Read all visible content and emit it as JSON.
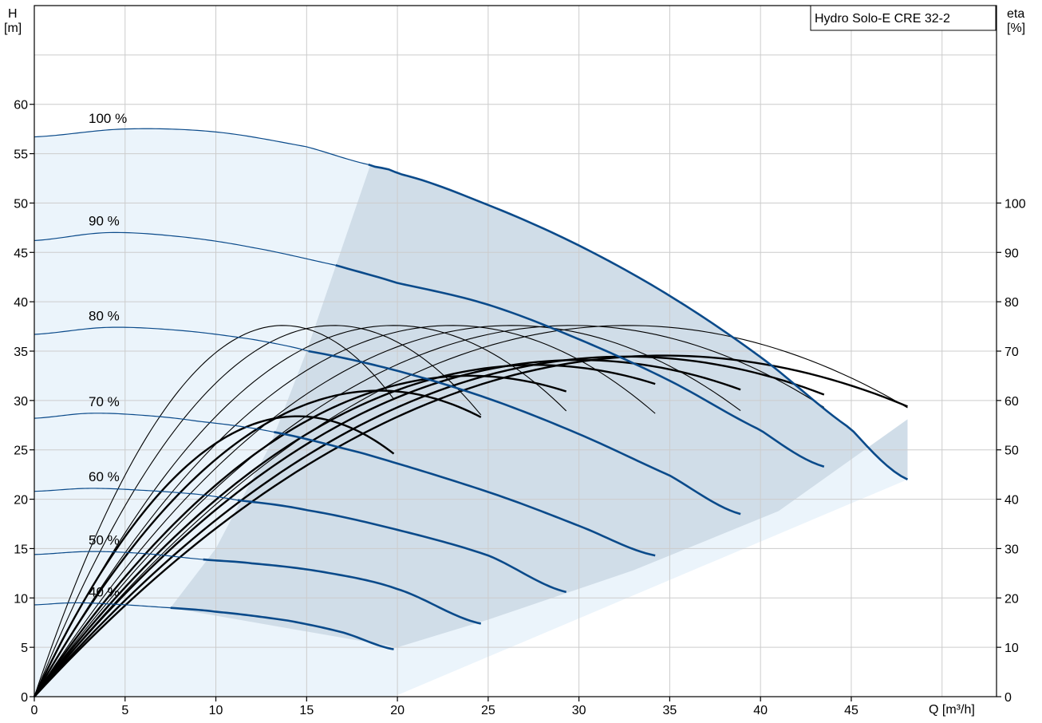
{
  "chart_data": {
    "type": "line",
    "title": "Hydro Solo-E CRE 32-2",
    "xlabel": "Q [m³/h]",
    "ylabel_left": [
      "H",
      "[m]"
    ],
    "ylabel_right": [
      "eta",
      "[%]"
    ],
    "xlim": [
      0,
      53
    ],
    "ylim": [
      0,
      70
    ],
    "ylim_right": [
      0,
      140
    ],
    "x_ticks": [
      0,
      5,
      10,
      15,
      20,
      25,
      30,
      35,
      40,
      45
    ],
    "y_ticks": [
      0,
      5,
      10,
      15,
      20,
      25,
      30,
      35,
      40,
      45,
      50,
      55,
      60
    ],
    "y_right_ticks": [
      0,
      10,
      20,
      30,
      40,
      50,
      60,
      70,
      80,
      90,
      100
    ],
    "grid": true,
    "colors": {
      "head_curve": "#0a4a8a",
      "efficiency_curve": "#000000",
      "operating_area": "#d0dde8",
      "full_range_area": "#ebf4fb",
      "grid": "#cccccc"
    },
    "operating_area_boundary": [
      [
        7.5,
        9.0
      ],
      [
        10,
        15
      ],
      [
        13,
        25.5
      ],
      [
        15,
        35
      ],
      [
        18.5,
        53.8
      ],
      [
        48.1,
        28.1
      ],
      [
        41,
        18.8
      ],
      [
        33,
        12.8
      ],
      [
        25,
        7.8
      ],
      [
        20,
        5.0
      ]
    ],
    "speed_curves": [
      {
        "name": "100 %",
        "label_x": 4,
        "x": [
          0,
          5,
          10,
          15,
          18.4,
          20,
          25,
          30,
          35,
          40,
          45,
          48.1
        ],
        "y": [
          56.7,
          57.5,
          57.2,
          55.7,
          53.9,
          53.0,
          49.8,
          45.7,
          40.6,
          34.4,
          27.1,
          22.0
        ],
        "heavy_from": 18.4
      },
      {
        "name": "90 %",
        "label_x": 4,
        "x": [
          0,
          4,
          8,
          12,
          16.6,
          20,
          25,
          30,
          35,
          40,
          43.5
        ],
        "y": [
          46.2,
          47.0,
          46.6,
          45.5,
          43.7,
          41.9,
          39.7,
          36.2,
          32.0,
          27.0,
          23.3
        ],
        "heavy_from": 16.6
      },
      {
        "name": "80 %",
        "label_x": 4,
        "x": [
          0,
          4,
          8,
          12,
          15.1,
          20,
          25,
          30,
          35,
          38.9
        ],
        "y": [
          36.7,
          37.4,
          37.1,
          36.2,
          35.0,
          33.0,
          30.2,
          26.6,
          22.4,
          18.5
        ],
        "heavy_from": 15.1
      },
      {
        "name": "70 %",
        "label_x": 4,
        "x": [
          0,
          3,
          6,
          9,
          13.2,
          18,
          22,
          26,
          30,
          34.2
        ],
        "y": [
          28.2,
          28.7,
          28.5,
          27.9,
          26.8,
          24.7,
          22.5,
          20.1,
          17.3,
          14.3
        ],
        "heavy_from": 13.2
      },
      {
        "name": "60 %",
        "label_x": 4,
        "x": [
          0,
          3,
          6,
          9,
          11.2,
          15,
          20,
          25,
          29.3
        ],
        "y": [
          20.8,
          21.1,
          20.9,
          20.5,
          19.9,
          18.9,
          16.9,
          14.3,
          10.6
        ],
        "heavy_from": 11.2
      },
      {
        "name": "50 %",
        "label_x": 4,
        "x": [
          0,
          3,
          6,
          9.3,
          12,
          16,
          20,
          24.6
        ],
        "y": [
          14.4,
          14.7,
          14.5,
          13.9,
          13.5,
          12.6,
          10.9,
          7.4
        ],
        "heavy_from": 9.3
      },
      {
        "name": "40 %",
        "label_x": 4,
        "x": [
          0,
          2,
          4,
          7.5,
          10,
          14,
          17,
          19.8
        ],
        "y": [
          9.3,
          9.5,
          9.4,
          9.0,
          8.6,
          7.7,
          6.5,
          4.8
        ],
        "heavy_from": 7.5
      }
    ],
    "efficiency_curves": [
      {
        "speed": "100 %",
        "peak_q": 32.7,
        "peak_eta": 75.2,
        "end_q": 48.1,
        "end_eta": 61.5
      },
      {
        "speed": "90 %",
        "peak_q": 29.6,
        "peak_eta": 75.2,
        "end_q": 43.5,
        "end_eta": 61.3
      },
      {
        "speed": "80 %",
        "peak_q": 26.3,
        "peak_eta": 75.2,
        "end_q": 38.9,
        "end_eta": 61.3
      },
      {
        "speed": "70 %",
        "peak_q": 23.0,
        "peak_eta": 75.2,
        "end_q": 34.2,
        "end_eta": 61.3
      },
      {
        "speed": "60 %",
        "peak_q": 19.8,
        "peak_eta": 75.2,
        "end_q": 29.3,
        "end_eta": 61.3
      },
      {
        "speed": "50 %",
        "peak_q": 16.5,
        "peak_eta": 75.2,
        "end_q": 24.6,
        "end_eta": 61.3
      },
      {
        "speed": "40 %",
        "peak_q": 13.7,
        "peak_eta": 75.2,
        "end_q": 19.8,
        "end_eta": 61.3
      },
      {
        "speed": "100 %",
        "peak_q": 34.7,
        "peak_eta": 69.1,
        "end_q": 48.1,
        "end_eta": 56.5,
        "heavy": true
      },
      {
        "speed": "90 %",
        "peak_q": 32.6,
        "peak_eta": 68.9,
        "end_q": 43.5,
        "end_eta": 56.0,
        "heavy": true
      },
      {
        "speed": "80 %",
        "peak_q": 30.0,
        "peak_eta": 68.2,
        "end_q": 38.9,
        "end_eta": 55.2,
        "heavy": true
      },
      {
        "speed": "70 %",
        "peak_q": 27.6,
        "peak_eta": 67.2,
        "end_q": 34.2,
        "end_eta": 55.0,
        "heavy": true
      },
      {
        "speed": "60 %",
        "peak_q": 24.0,
        "peak_eta": 65.0,
        "end_q": 29.3,
        "end_eta": 53.5,
        "heavy": true
      },
      {
        "speed": "50 %",
        "peak_q": 19.0,
        "peak_eta": 62.0,
        "end_q": 24.6,
        "end_eta": 51.0,
        "heavy": true
      },
      {
        "speed": "40 %",
        "peak_q": 14.5,
        "peak_eta": 56.8,
        "end_q": 19.8,
        "end_eta": 47.0,
        "heavy": true
      }
    ]
  }
}
